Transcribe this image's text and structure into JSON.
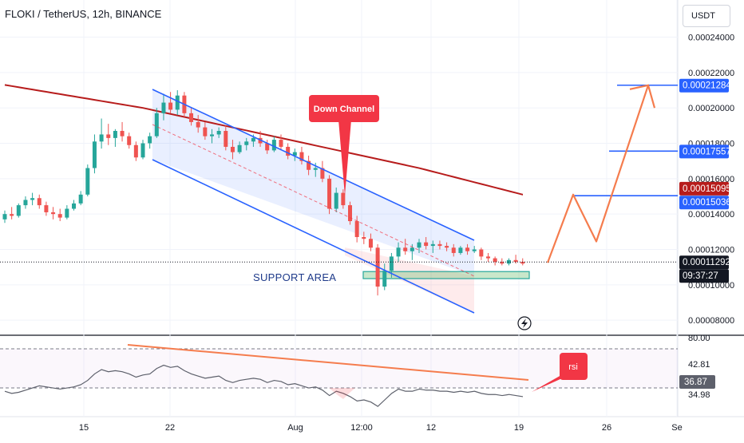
{
  "header": {
    "title": "FLOKI / TetherUS, 12h, BINANCE",
    "unit": "USDT"
  },
  "price_axis": [
    "0.00024000",
    "0.00022000",
    "0.00020000",
    "0.00018000",
    "0.00016000",
    "0.00014000",
    "0.00012000",
    "0.00010000",
    "0.00008000"
  ],
  "price_tags": [
    {
      "label": "0.00021284",
      "color": "#2962ff"
    },
    {
      "label": "0.00017557",
      "color": "#2962ff"
    },
    {
      "label": "0.00015095",
      "color": "#b71c1c"
    },
    {
      "label": "0.00015036",
      "color": "#2962ff"
    },
    {
      "label": "0.00011292",
      "color": "#131722"
    },
    {
      "label": "09:37:27",
      "color": "#131722"
    }
  ],
  "rsi_axis": [
    "80.00",
    "42.81",
    "34.98"
  ],
  "rsi_tag": "36.87",
  "time_axis": [
    "15",
    "22",
    "Aug",
    "12:00",
    "12",
    "19",
    "26",
    "Se"
  ],
  "annotations": {
    "down_channel": "Down Channel",
    "support": "SUPPORT AREA",
    "rsi": "rsi"
  },
  "colors": {
    "up": "#26a69a",
    "down": "#ef5350",
    "ma": "#b71c1c",
    "channel": "#2962ff",
    "projection": "#f57c4d",
    "callout": "#f23645",
    "rsi_line": "#5d606b"
  },
  "chart_data": {
    "type": "candlestick",
    "title": "FLOKI / TetherUS, 12h, BINANCE",
    "candles": [
      [
        0.000137,
        0.000142,
        0.000135,
        0.00014
      ],
      [
        0.00014,
        0.000144,
        0.000137,
        0.000139
      ],
      [
        0.000139,
        0.000146,
        0.000138,
        0.000145
      ],
      [
        0.000145,
        0.00015,
        0.000143,
        0.000148
      ],
      [
        0.000148,
        0.000152,
        0.000145,
        0.000149
      ],
      [
        0.000149,
        0.000151,
        0.000143,
        0.000145
      ],
      [
        0.000145,
        0.000147,
        0.000139,
        0.000141
      ],
      [
        0.000141,
        0.000144,
        0.000137,
        0.00014
      ],
      [
        0.00014,
        0.000143,
        0.000136,
        0.000138
      ],
      [
        0.000138,
        0.000145,
        0.000137,
        0.000143
      ],
      [
        0.000143,
        0.000148,
        0.000142,
        0.000146
      ],
      [
        0.000146,
        0.000153,
        0.000145,
        0.000151
      ],
      [
        0.000151,
        0.000168,
        0.00015,
        0.000166
      ],
      [
        0.000166,
        0.000185,
        0.000163,
        0.000181
      ],
      [
        0.000181,
        0.000194,
        0.000177,
        0.000185
      ],
      [
        0.000185,
        0.000191,
        0.000179,
        0.000183
      ],
      [
        0.000183,
        0.000188,
        0.000178,
        0.000187
      ],
      [
        0.000187,
        0.000192,
        0.000181,
        0.000184
      ],
      [
        0.000184,
        0.000186,
        0.000177,
        0.000179
      ],
      [
        0.000179,
        0.000181,
        0.00017,
        0.000172
      ],
      [
        0.000172,
        0.000182,
        0.000171,
        0.00018
      ],
      [
        0.00018,
        0.000186,
        0.000177,
        0.000184
      ],
      [
        0.000184,
        0.0002,
        0.000183,
        0.000197
      ],
      [
        0.000197,
        0.000208,
        0.000193,
        0.000203
      ],
      [
        0.000203,
        0.000209,
        0.000197,
        0.000199
      ],
      [
        0.000199,
        0.00021,
        0.000196,
        0.000207
      ],
      [
        0.000207,
        0.000209,
        0.000195,
        0.000197
      ],
      [
        0.000197,
        0.0002,
        0.00019,
        0.000192
      ],
      [
        0.000192,
        0.000196,
        0.000186,
        0.000189
      ],
      [
        0.000189,
        0.000192,
        0.000182,
        0.000184
      ],
      [
        0.000184,
        0.000188,
        0.00018,
        0.000185
      ],
      [
        0.000185,
        0.000189,
        0.000183,
        0.000187
      ],
      [
        0.000187,
        0.00019,
        0.000176,
        0.000178
      ],
      [
        0.000178,
        0.000182,
        0.000171,
        0.000175
      ],
      [
        0.000175,
        0.000181,
        0.000174,
        0.000179
      ],
      [
        0.000179,
        0.000183,
        0.000176,
        0.000181
      ],
      [
        0.000181,
        0.000185,
        0.000178,
        0.000183
      ],
      [
        0.000183,
        0.000187,
        0.000178,
        0.00018
      ],
      [
        0.00018,
        0.000182,
        0.000174,
        0.000176
      ],
      [
        0.000176,
        0.000184,
        0.000175,
        0.000182
      ],
      [
        0.000182,
        0.000185,
        0.000176,
        0.000178
      ],
      [
        0.000178,
        0.00018,
        0.000171,
        0.000173
      ],
      [
        0.000173,
        0.000177,
        0.00017,
        0.000175
      ],
      [
        0.000175,
        0.000178,
        0.000168,
        0.00017
      ],
      [
        0.00017,
        0.000173,
        0.000162,
        0.000165
      ],
      [
        0.000165,
        0.000169,
        0.000161,
        0.000166
      ],
      [
        0.000166,
        0.00017,
        0.000158,
        0.00016
      ],
      [
        0.00016,
        0.000162,
        0.00014,
        0.000143
      ],
      [
        0.000143,
        0.000155,
        0.000141,
        0.000152
      ],
      [
        0.000152,
        0.000154,
        0.000143,
        0.000145
      ],
      [
        0.000145,
        0.000147,
        0.000134,
        0.000136
      ],
      [
        0.000136,
        0.000139,
        0.000124,
        0.000127
      ],
      [
        0.000127,
        0.00013,
        0.000123,
        0.000126
      ],
      [
        0.000126,
        0.000129,
        0.000119,
        0.000121
      ],
      [
        0.000121,
        0.000123,
        9.4e-05,
        9.9e-05
      ],
      [
        9.9e-05,
        0.000112,
        9.7e-05,
        0.000108
      ],
      [
        0.000108,
        0.000118,
        0.000104,
        0.000116
      ],
      [
        0.000116,
        0.000124,
        0.000113,
        0.000121
      ],
      [
        0.000121,
        0.000126,
        0.000117,
        0.000119
      ],
      [
        0.000119,
        0.000123,
        0.000114,
        0.000121
      ],
      [
        0.000121,
        0.000126,
        0.000118,
        0.000124
      ],
      [
        0.000124,
        0.000127,
        0.00012,
        0.000122
      ],
      [
        0.000122,
        0.000125,
        0.000118,
        0.000123
      ],
      [
        0.000123,
        0.000125,
        0.00012,
        0.000122
      ],
      [
        0.000122,
        0.000124,
        0.000119,
        0.000121
      ],
      [
        0.000121,
        0.000123,
        0.000116,
        0.000118
      ],
      [
        0.000118,
        0.000122,
        0.000117,
        0.000121
      ],
      [
        0.000121,
        0.000123,
        0.000117,
        0.000119
      ],
      [
        0.000119,
        0.000122,
        0.000118,
        0.00012
      ],
      [
        0.00012,
        0.000121,
        0.000114,
        0.000116
      ],
      [
        0.000116,
        0.000118,
        0.000113,
        0.000115
      ],
      [
        0.000115,
        0.000116,
        0.000111,
        0.000113
      ],
      [
        0.000113,
        0.000115,
        0.000111,
        0.000112
      ],
      [
        0.000112,
        0.000115,
        0.000111,
        0.000114
      ],
      [
        0.000114,
        0.000117,
        0.000112,
        0.000113
      ],
      [
        0.000113,
        0.000115,
        0.000111,
        0.000112
      ]
    ],
    "moving_average": [
      [
        0,
        0.000213
      ],
      [
        20,
        0.0002
      ],
      [
        40,
        0.000183
      ],
      [
        60,
        0.000166
      ],
      [
        75,
        0.000151
      ]
    ],
    "support_zone": [
      0.0001035,
      0.0001075
    ],
    "projection_path": [
      0.0001125,
      0.000151,
      0.0001245,
      0.0002128,
      0.0002
    ],
    "target_levels": [
      0.00021284,
      0.00017557,
      0.00015036
    ],
    "last_price": 0.00011292,
    "y_range": [
      7.15e-05,
      0.000261
    ],
    "rsi": {
      "levels": [
        80.0,
        42.81,
        34.98
      ],
      "last_value": 36.87,
      "values": [
        42,
        40,
        41,
        43,
        45,
        47,
        46,
        45,
        44,
        45,
        46,
        48,
        52,
        58,
        62,
        60,
        61,
        60,
        58,
        55,
        57,
        58,
        63,
        66,
        64,
        65,
        61,
        58,
        56,
        54,
        55,
        56,
        52,
        50,
        52,
        53,
        54,
        53,
        50,
        52,
        51,
        48,
        49,
        47,
        45,
        46,
        43,
        38,
        42,
        40,
        37,
        33,
        34,
        32,
        28,
        34,
        40,
        44,
        42,
        42,
        44,
        43,
        43,
        42,
        42,
        41,
        42,
        41,
        42,
        40,
        39,
        39,
        38,
        39,
        38,
        37
      ],
      "range": [
        20,
        90
      ]
    }
  }
}
